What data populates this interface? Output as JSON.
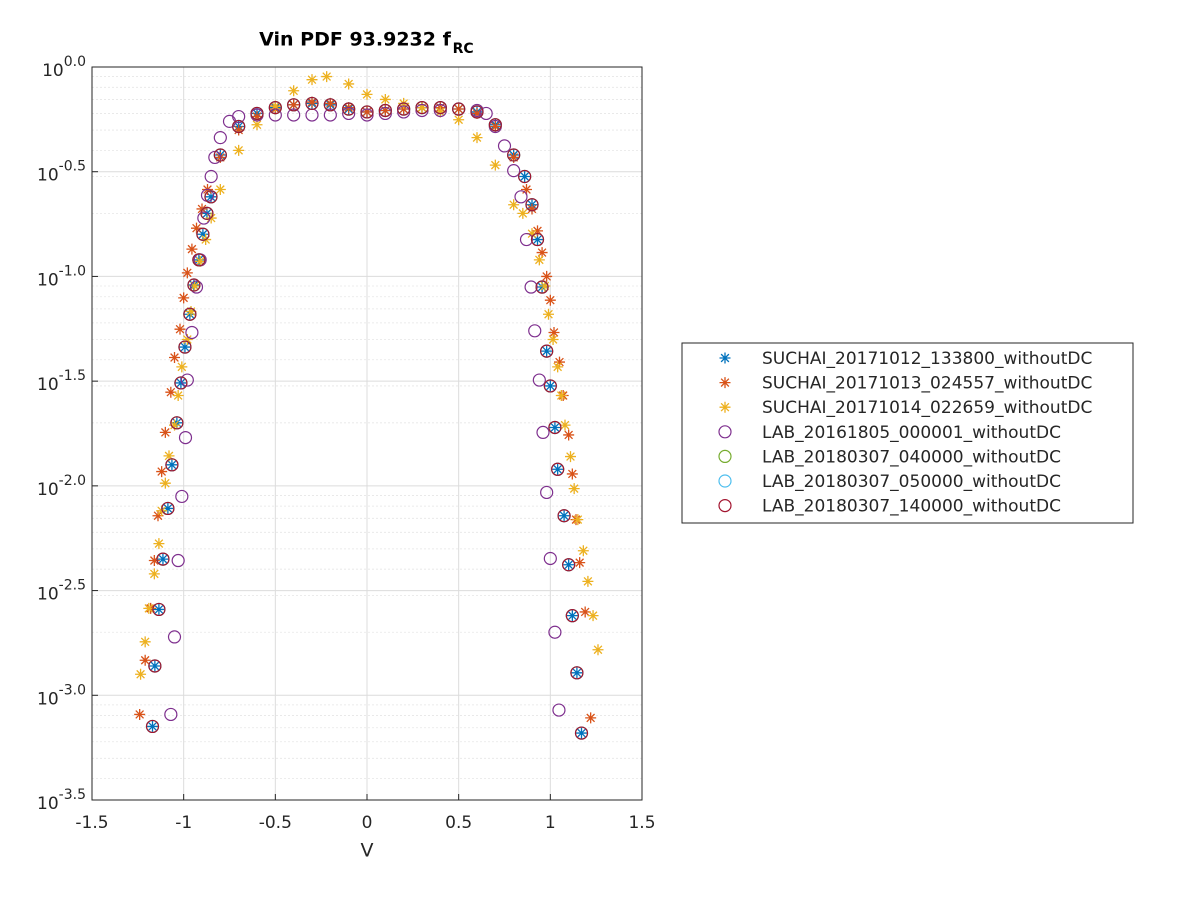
{
  "chart_data": {
    "type": "scatter",
    "title": "Vin PDF 93.9232 f",
    "title_subscript": "RC",
    "xlabel": "V",
    "xlim": [
      -1.5,
      1.5
    ],
    "xticks": [
      -1.5,
      -1,
      -0.5,
      0,
      0.5,
      1,
      1.5
    ],
    "ylim": [
      0.000316228,
      1
    ],
    "yticks": [
      {
        "value": 1,
        "label": "10^0.0"
      },
      {
        "value": 0.316228,
        "label": "10^-0.5"
      },
      {
        "value": 0.1,
        "label": "10^-1.0"
      },
      {
        "value": 0.0316228,
        "label": "10^-1.5"
      },
      {
        "value": 0.01,
        "label": "10^-2.0"
      },
      {
        "value": 0.00316228,
        "label": "10^-2.5"
      },
      {
        "value": 0.001,
        "label": "10^-3.0"
      },
      {
        "value": 0.000316228,
        "label": "10^-3.5"
      }
    ],
    "ylog": true,
    "grid": true,
    "minor_grid": true,
    "legend": "right",
    "series": [
      {
        "name": "SUCHAI_20171012_133800_withoutDC",
        "color": "#0072bd",
        "marker": "asterisk",
        "x": [
          -1.17,
          -1.157,
          -1.135,
          -1.113,
          -1.086,
          -1.064,
          -1.037,
          -1.015,
          -0.993,
          -0.966,
          -0.944,
          -0.917,
          -0.895,
          -0.873,
          -0.851,
          -0.8,
          -0.7,
          -0.6,
          -0.5,
          -0.4,
          -0.3,
          -0.2,
          -0.1,
          0,
          0.1,
          0.2,
          0.3,
          0.4,
          0.5,
          0.6,
          0.7,
          0.8,
          0.86,
          0.9,
          0.93,
          0.955,
          0.98,
          1.0,
          1.025,
          1.04,
          1.075,
          1.1,
          1.12,
          1.145,
          1.17
        ],
        "values": [
          0.00071,
          0.00138,
          0.00257,
          0.00447,
          0.0078,
          0.0126,
          0.02,
          0.031,
          0.046,
          0.066,
          0.091,
          0.12,
          0.159,
          0.2,
          0.24,
          0.38,
          0.52,
          0.6,
          0.64,
          0.66,
          0.67,
          0.66,
          0.63,
          0.61,
          0.62,
          0.63,
          0.64,
          0.64,
          0.63,
          0.61,
          0.53,
          0.38,
          0.3,
          0.22,
          0.15,
          0.089,
          0.044,
          0.03,
          0.019,
          0.012,
          0.0072,
          0.0042,
          0.0024,
          0.00128,
          0.00066
        ]
      },
      {
        "name": "SUCHAI_20171013_024557_withoutDC",
        "color": "#d95319",
        "marker": "asterisk",
        "x": [
          -1.24,
          -1.21,
          -1.18,
          -1.16,
          -1.14,
          -1.12,
          -1.1,
          -1.07,
          -1.05,
          -1.02,
          -1.0,
          -0.98,
          -0.955,
          -0.93,
          -0.9,
          -0.87,
          -0.8,
          -0.7,
          -0.6,
          -0.5,
          -0.4,
          -0.3,
          -0.2,
          -0.1,
          0,
          0.1,
          0.2,
          0.3,
          0.4,
          0.5,
          0.6,
          0.7,
          0.8,
          0.87,
          0.9,
          0.93,
          0.955,
          0.98,
          1.0,
          1.02,
          1.05,
          1.07,
          1.1,
          1.12,
          1.14,
          1.16,
          1.19,
          1.22
        ],
        "values": [
          0.00081,
          0.00147,
          0.0026,
          0.0044,
          0.0072,
          0.0117,
          0.018,
          0.028,
          0.041,
          0.056,
          0.079,
          0.104,
          0.135,
          0.17,
          0.21,
          0.26,
          0.37,
          0.5,
          0.58,
          0.63,
          0.66,
          0.68,
          0.67,
          0.64,
          0.61,
          0.62,
          0.63,
          0.64,
          0.64,
          0.63,
          0.6,
          0.52,
          0.37,
          0.26,
          0.21,
          0.165,
          0.13,
          0.1,
          0.077,
          0.054,
          0.039,
          0.027,
          0.0175,
          0.0114,
          0.0069,
          0.0043,
          0.0025,
          0.00078
        ]
      },
      {
        "name": "SUCHAI_20171014_022659_withoutDC",
        "color": "#edb120",
        "marker": "asterisk",
        "x": [
          -1.235,
          -1.21,
          -1.19,
          -1.16,
          -1.135,
          -1.12,
          -1.1,
          -1.08,
          -1.05,
          -1.03,
          -1.01,
          -0.98,
          -0.96,
          -0.94,
          -0.91,
          -0.88,
          -0.85,
          -0.8,
          -0.7,
          -0.6,
          -0.5,
          -0.4,
          -0.3,
          -0.22,
          -0.1,
          0,
          0.1,
          0.2,
          0.3,
          0.4,
          0.5,
          0.6,
          0.7,
          0.8,
          0.85,
          0.9,
          0.94,
          0.97,
          0.99,
          1.015,
          1.04,
          1.06,
          1.08,
          1.11,
          1.13,
          1.15,
          1.18,
          1.205,
          1.233,
          1.26
        ],
        "values": [
          0.00126,
          0.0018,
          0.0026,
          0.0038,
          0.0053,
          0.0076,
          0.0103,
          0.0139,
          0.0195,
          0.027,
          0.037,
          0.05,
          0.068,
          0.09,
          0.118,
          0.15,
          0.19,
          0.26,
          0.4,
          0.53,
          0.65,
          0.77,
          0.87,
          0.9,
          0.83,
          0.74,
          0.7,
          0.67,
          0.64,
          0.61,
          0.56,
          0.46,
          0.34,
          0.22,
          0.2,
          0.16,
          0.12,
          0.09,
          0.066,
          0.05,
          0.037,
          0.027,
          0.0195,
          0.0138,
          0.0097,
          0.0069,
          0.0049,
          0.0035,
          0.0024,
          0.00165
        ]
      },
      {
        "name": "LAB_20161805_000001_withoutDC",
        "color": "#7e2f8e",
        "marker": "circle",
        "x": [
          -1.07,
          -1.05,
          -1.03,
          -1.01,
          -0.99,
          -0.98,
          -0.955,
          -0.93,
          -0.91,
          -0.89,
          -0.87,
          -0.85,
          -0.83,
          -0.8,
          -0.75,
          -0.7,
          -0.6,
          -0.5,
          -0.4,
          -0.3,
          -0.2,
          -0.1,
          0,
          0.1,
          0.2,
          0.3,
          0.4,
          0.5,
          0.6,
          0.65,
          0.7,
          0.75,
          0.8,
          0.84,
          0.87,
          0.895,
          0.915,
          0.94,
          0.96,
          0.98,
          1.0,
          1.025,
          1.047
        ],
        "values": [
          0.00081,
          0.0019,
          0.0044,
          0.0089,
          0.017,
          0.032,
          0.054,
          0.089,
          0.12,
          0.19,
          0.244,
          0.3,
          0.37,
          0.46,
          0.55,
          0.58,
          0.59,
          0.59,
          0.59,
          0.59,
          0.59,
          0.6,
          0.59,
          0.6,
          0.61,
          0.62,
          0.62,
          0.63,
          0.62,
          0.6,
          0.52,
          0.42,
          0.32,
          0.24,
          0.15,
          0.089,
          0.055,
          0.032,
          0.018,
          0.0093,
          0.0045,
          0.002,
          0.00085
        ]
      },
      {
        "name": "LAB_20180307_040000_withoutDC",
        "color": "#77ac30",
        "marker": "circle",
        "x": [
          -1.17,
          -1.157,
          -1.135,
          -1.113,
          -1.086,
          -1.064,
          -1.037,
          -1.015,
          -0.993,
          -0.966,
          -0.944,
          -0.917,
          -0.895,
          -0.873,
          -0.851,
          -0.8,
          -0.7,
          -0.6,
          -0.5,
          -0.4,
          -0.3,
          -0.2,
          -0.1,
          0,
          0.1,
          0.2,
          0.3,
          0.4,
          0.5,
          0.6,
          0.7,
          0.8,
          0.86,
          0.9,
          0.93,
          0.955,
          0.98,
          1.0,
          1.025,
          1.04,
          1.075,
          1.1,
          1.12,
          1.145,
          1.17
        ],
        "values": [
          0.00071,
          0.00138,
          0.00257,
          0.00447,
          0.0078,
          0.0126,
          0.02,
          0.031,
          0.046,
          0.066,
          0.091,
          0.12,
          0.159,
          0.2,
          0.24,
          0.38,
          0.52,
          0.6,
          0.64,
          0.66,
          0.67,
          0.66,
          0.63,
          0.61,
          0.62,
          0.63,
          0.64,
          0.64,
          0.63,
          0.61,
          0.53,
          0.38,
          0.3,
          0.22,
          0.15,
          0.089,
          0.044,
          0.03,
          0.019,
          0.012,
          0.0072,
          0.0042,
          0.0024,
          0.00128,
          0.00066
        ]
      },
      {
        "name": "LAB_20180307_050000_withoutDC",
        "color": "#4dbeee",
        "marker": "circle",
        "x": [
          -1.17,
          -1.157,
          -1.135,
          -1.113,
          -1.086,
          -1.064,
          -1.037,
          -1.015,
          -0.993,
          -0.966,
          -0.944,
          -0.917,
          -0.895,
          -0.873,
          -0.851,
          -0.8,
          -0.7,
          -0.6,
          -0.5,
          -0.4,
          -0.3,
          -0.2,
          -0.1,
          0,
          0.1,
          0.2,
          0.3,
          0.4,
          0.5,
          0.6,
          0.7,
          0.8,
          0.86,
          0.9,
          0.93,
          0.955,
          0.98,
          1.0,
          1.025,
          1.04,
          1.075,
          1.1,
          1.12,
          1.145,
          1.17
        ],
        "values": [
          0.00071,
          0.00138,
          0.00257,
          0.00447,
          0.0078,
          0.0126,
          0.02,
          0.031,
          0.046,
          0.066,
          0.091,
          0.12,
          0.159,
          0.2,
          0.24,
          0.38,
          0.52,
          0.6,
          0.64,
          0.66,
          0.67,
          0.66,
          0.63,
          0.61,
          0.62,
          0.63,
          0.64,
          0.64,
          0.63,
          0.61,
          0.53,
          0.38,
          0.3,
          0.22,
          0.15,
          0.089,
          0.044,
          0.03,
          0.019,
          0.012,
          0.0072,
          0.0042,
          0.0024,
          0.00128,
          0.00066
        ]
      },
      {
        "name": "LAB_20180307_140000_withoutDC",
        "color": "#a2142f",
        "marker": "circle",
        "x": [
          -1.17,
          -1.157,
          -1.135,
          -1.113,
          -1.086,
          -1.064,
          -1.037,
          -1.015,
          -0.993,
          -0.966,
          -0.944,
          -0.917,
          -0.895,
          -0.873,
          -0.851,
          -0.8,
          -0.7,
          -0.6,
          -0.5,
          -0.4,
          -0.3,
          -0.2,
          -0.1,
          0,
          0.1,
          0.2,
          0.3,
          0.4,
          0.5,
          0.6,
          0.7,
          0.8,
          0.86,
          0.9,
          0.93,
          0.955,
          0.98,
          1.0,
          1.025,
          1.04,
          1.075,
          1.1,
          1.12,
          1.145,
          1.17
        ],
        "values": [
          0.00071,
          0.00138,
          0.00257,
          0.00447,
          0.0078,
          0.0126,
          0.02,
          0.031,
          0.046,
          0.066,
          0.091,
          0.12,
          0.159,
          0.2,
          0.24,
          0.38,
          0.52,
          0.6,
          0.64,
          0.66,
          0.67,
          0.66,
          0.63,
          0.61,
          0.62,
          0.63,
          0.64,
          0.64,
          0.63,
          0.61,
          0.53,
          0.38,
          0.3,
          0.22,
          0.15,
          0.089,
          0.044,
          0.03,
          0.019,
          0.012,
          0.0072,
          0.0042,
          0.0024,
          0.00128,
          0.00066
        ]
      }
    ]
  }
}
